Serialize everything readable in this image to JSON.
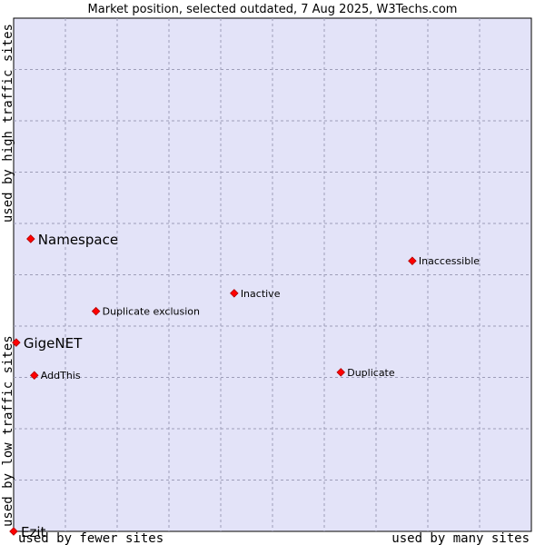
{
  "chart_data": {
    "type": "scatter",
    "title": "Market position, selected outdated, 7 Aug 2025, W3Techs.com",
    "xlabel_low": "used by fewer sites",
    "xlabel_high": "used by many sites",
    "ylabel_low": "used by low traffic sites",
    "ylabel_high": "used by high traffic sites",
    "xlim": [
      0,
      100
    ],
    "ylim": [
      0,
      100
    ],
    "grid": true,
    "colors": {
      "background": "#e3e3f8",
      "point": "#ff0000",
      "point_edge": "#b00000",
      "grid": "#9e9eb8"
    },
    "points": [
      {
        "name": "Namespace",
        "x": 3.3,
        "y": 57.0,
        "size": "large"
      },
      {
        "name": "GigeNET",
        "x": 0.5,
        "y": 36.8,
        "size": "large"
      },
      {
        "name": "Ezit",
        "x": 0.0,
        "y": 0.0,
        "size": "large"
      },
      {
        "name": "Inaccessible",
        "x": 77.0,
        "y": 52.7,
        "size": "small"
      },
      {
        "name": "Inactive",
        "x": 42.6,
        "y": 46.4,
        "size": "small"
      },
      {
        "name": "Duplicate exclusion",
        "x": 15.9,
        "y": 42.9,
        "size": "small"
      },
      {
        "name": "AddThis",
        "x": 4.0,
        "y": 30.4,
        "size": "small"
      },
      {
        "name": "Duplicate",
        "x": 63.2,
        "y": 31.0,
        "size": "small"
      }
    ]
  }
}
